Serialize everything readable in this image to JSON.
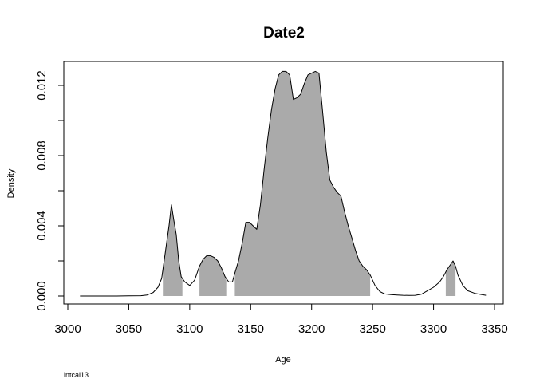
{
  "chart_data": {
    "type": "area",
    "title": "Date2",
    "xlabel": "Age",
    "ylabel": "Density",
    "caption": "intcal13",
    "xlim": [
      3000,
      3350
    ],
    "ylim": [
      0,
      0.013
    ],
    "x_ticks": [
      3000,
      3050,
      3100,
      3150,
      3200,
      3250,
      3300,
      3350
    ],
    "x_tick_labels": [
      "3000",
      "3050",
      "3100",
      "3150",
      "3200",
      "3250",
      "3300",
      "3350"
    ],
    "y_ticks": [
      0,
      0.004,
      0.008,
      0.012
    ],
    "y_tick_labels": [
      "0.000",
      "0.004",
      "0.008",
      "0.012"
    ],
    "line_color": "#000000",
    "fill_color": "#aaaaaa",
    "shaded_intervals": [
      [
        3078,
        3094
      ],
      [
        3108,
        3130
      ],
      [
        3137,
        3248
      ],
      [
        3310,
        3318
      ]
    ],
    "density": {
      "x": [
        3010,
        3020,
        3030,
        3040,
        3050,
        3060,
        3065,
        3070,
        3074,
        3077,
        3080,
        3083,
        3085,
        3087,
        3089,
        3091,
        3093,
        3096,
        3100,
        3104,
        3108,
        3111,
        3114,
        3117,
        3120,
        3123,
        3126,
        3129,
        3132,
        3135,
        3137,
        3140,
        3143,
        3146,
        3149,
        3152,
        3155,
        3158,
        3161,
        3164,
        3167,
        3170,
        3173,
        3176,
        3179,
        3182,
        3185,
        3188,
        3191,
        3194,
        3197,
        3200,
        3203,
        3206,
        3209,
        3212,
        3215,
        3218,
        3221,
        3224,
        3227,
        3230,
        3233,
        3236,
        3239,
        3242,
        3245,
        3248,
        3252,
        3256,
        3260,
        3265,
        3270,
        3275,
        3280,
        3285,
        3290,
        3295,
        3300,
        3305,
        3308,
        3311,
        3314,
        3316,
        3318,
        3320,
        3324,
        3328,
        3334,
        3343
      ],
      "y": [
        0,
        0,
        0,
        0,
        1e-05,
        2e-05,
        6e-05,
        0.0002,
        0.0005,
        0.001,
        0.0025,
        0.004,
        0.0052,
        0.0043,
        0.0035,
        0.002,
        0.0011,
        0.0008,
        0.0006,
        0.0009,
        0.0017,
        0.0021,
        0.0023,
        0.0023,
        0.0022,
        0.002,
        0.0016,
        0.0011,
        0.0008,
        0.0008,
        0.0013,
        0.002,
        0.003,
        0.0042,
        0.0042,
        0.004,
        0.0038,
        0.0052,
        0.0072,
        0.009,
        0.0106,
        0.0118,
        0.0126,
        0.0128,
        0.0128,
        0.0126,
        0.0112,
        0.0113,
        0.0115,
        0.0121,
        0.0126,
        0.0127,
        0.0128,
        0.0127,
        0.0105,
        0.0082,
        0.0066,
        0.0062,
        0.0059,
        0.0057,
        0.0048,
        0.004,
        0.0033,
        0.0026,
        0.002,
        0.0017,
        0.0015,
        0.0012,
        0.0006,
        0.00025,
        0.00012,
        8e-05,
        6e-05,
        4e-05,
        3e-05,
        4e-05,
        0.0001,
        0.0003,
        0.0005,
        0.0008,
        0.0011,
        0.0015,
        0.0018,
        0.002,
        0.0017,
        0.0012,
        0.0006,
        0.0003,
        0.00015,
        4e-05
      ]
    }
  }
}
